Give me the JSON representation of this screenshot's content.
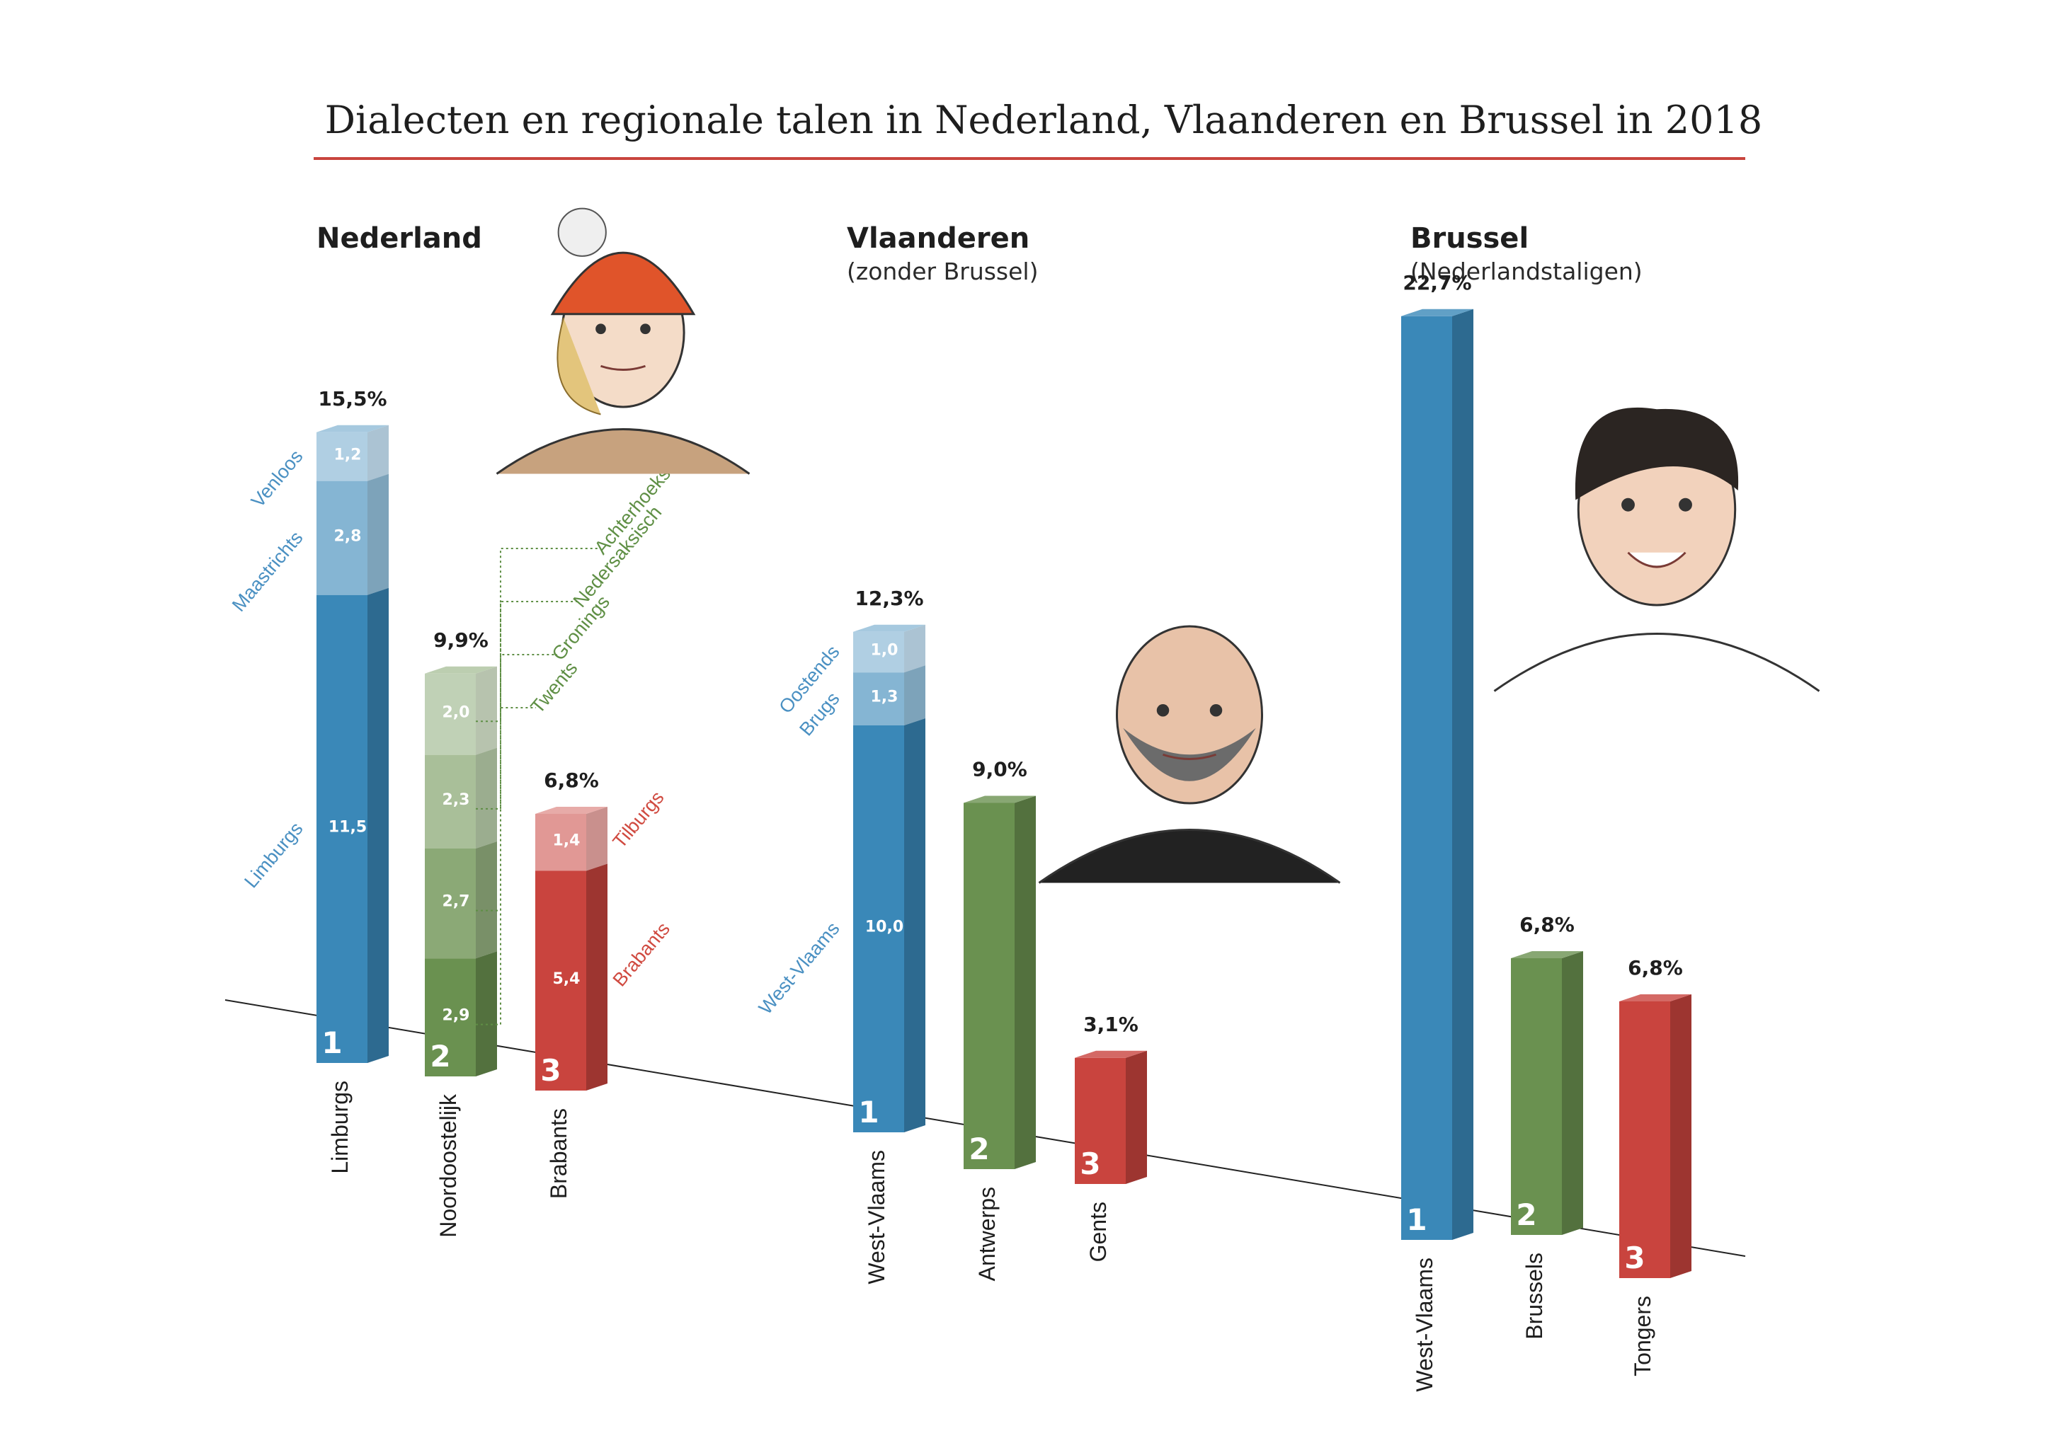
{
  "title": "Dialecten en regionale talen in Nederland, Vlaanderen en Brussel in 2018",
  "colors": {
    "blue": "#3a88b8",
    "green": "#6a9150",
    "red": "#c9443e",
    "rule": "#c9443e",
    "blue_label": "#4a90c2",
    "green_label": "#5f8f45",
    "red_label": "#d04a40"
  },
  "icons": [
    "woman-with-hat-illustration",
    "bald-man-illustration",
    "smiling-woman-illustration"
  ],
  "chart_data": [
    {
      "type": "bar",
      "stacked": true,
      "group": "Nederland",
      "subtitle": "",
      "categories": [
        "Limburgs",
        "Noordoostelijk",
        "Brabants"
      ],
      "ranks": [
        "1",
        "2",
        "3"
      ],
      "totals": [
        "15,5%",
        "9,9%",
        "6,8%"
      ],
      "total_values": [
        15.5,
        9.9,
        6.8
      ],
      "unit": "%",
      "segments": [
        [
          {
            "name": "Limburgs",
            "value": 11.5,
            "label": "11,5"
          },
          {
            "name": "Maastrichts",
            "value": 2.8,
            "label": "2,8"
          },
          {
            "name": "Venloos",
            "value": 1.2,
            "label": "1,2"
          }
        ],
        [
          {
            "name": "Twents",
            "value": 2.9,
            "label": "2,9"
          },
          {
            "name": "Gronings",
            "value": 2.7,
            "label": "2,7"
          },
          {
            "name": "Nedersaksisch",
            "value": 2.3,
            "label": "2,3"
          },
          {
            "name": "Achterhoeks",
            "value": 2.0,
            "label": "2,0"
          }
        ],
        [
          {
            "name": "Brabants",
            "value": 5.4,
            "label": "5,4"
          },
          {
            "name": "Tilburgs",
            "value": 1.4,
            "label": "1,4"
          }
        ]
      ]
    },
    {
      "type": "bar",
      "stacked": true,
      "group": "Vlaanderen",
      "subtitle": "(zonder Brussel)",
      "categories": [
        "West-Vlaams",
        "Antwerps",
        "Gents"
      ],
      "ranks": [
        "1",
        "2",
        "3"
      ],
      "totals": [
        "12,3%",
        "9,0%",
        "3,1%"
      ],
      "total_values": [
        12.3,
        9.0,
        3.1
      ],
      "unit": "%",
      "segments": [
        [
          {
            "name": "West-Vlaams",
            "value": 10.0,
            "label": "10,0"
          },
          {
            "name": "Brugs",
            "value": 1.3,
            "label": "1,3"
          },
          {
            "name": "Oostends",
            "value": 1.0,
            "label": "1,0"
          }
        ],
        [
          {
            "name": "Antwerps",
            "value": 9.0,
            "label": ""
          }
        ],
        [
          {
            "name": "Gents",
            "value": 3.1,
            "label": ""
          }
        ]
      ]
    },
    {
      "type": "bar",
      "stacked": false,
      "group": "Brussel",
      "subtitle": "(Nederlandstaligen)",
      "categories": [
        "West-Vlaams",
        "Brussels",
        "Tongers"
      ],
      "ranks": [
        "1",
        "2",
        "3"
      ],
      "totals": [
        "22,7%",
        "6,8%",
        "6,8%"
      ],
      "total_values": [
        22.7,
        6.8,
        6.8
      ],
      "unit": "%",
      "segments": [
        [
          {
            "name": "West-Vlaams",
            "value": 22.7,
            "label": ""
          }
        ],
        [
          {
            "name": "Brussels",
            "value": 6.8,
            "label": ""
          }
        ],
        [
          {
            "name": "Tongers",
            "value": 6.8,
            "label": ""
          }
        ]
      ]
    }
  ]
}
